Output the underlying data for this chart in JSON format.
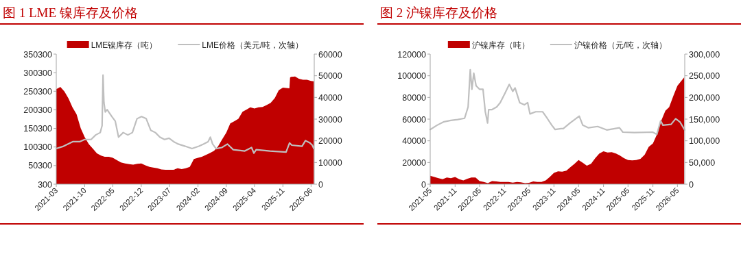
{
  "chart_data": [
    {
      "type": "area",
      "title": "图 1 LME 镍库存及价格",
      "legend": "top",
      "xlim": [
        "2021-03-01",
        "2026-06-25"
      ],
      "xticks": [
        {
          "value": "2021-03",
          "label": "2021-03"
        },
        {
          "value": "2021-10",
          "label": "2021-10"
        },
        {
          "value": "2022-05",
          "label": "2022-05"
        },
        {
          "value": "2022-12",
          "label": "2022-12"
        },
        {
          "value": "2023-07",
          "label": "2023-07"
        },
        {
          "value": "2024-02",
          "label": "2024-02"
        },
        {
          "value": "2024-09",
          "label": "2024-09"
        },
        {
          "value": "2025-04",
          "label": "2025-04"
        },
        {
          "value": "2025-11",
          "label": "2025-11"
        },
        {
          "value": "2026-06",
          "label": "2026-06"
        }
      ],
      "ylim": [
        300,
        350300
      ],
      "yticks": [
        300,
        50300,
        100300,
        150300,
        200300,
        250300,
        300300,
        350300
      ],
      "y2lim": [
        0,
        60000
      ],
      "y2ticks": [
        0,
        10000,
        20000,
        30000,
        40000,
        50000,
        60000
      ],
      "series": [
        {
          "name": "LME镍库存（吨）",
          "color": "#c00000",
          "x": [
            "2021-03-01",
            "2021-04-01",
            "2021-05-01",
            "2021-06-01",
            "2021-07-01",
            "2021-08-01",
            "2021-09-01",
            "2021-10-01",
            "2021-11-01",
            "2021-12-01",
            "2022-01-01",
            "2022-02-01",
            "2022-03-01",
            "2022-04-01",
            "2022-05-01",
            "2022-06-01",
            "2022-07-01",
            "2022-08-01",
            "2022-09-01",
            "2022-10-01",
            "2022-11-01",
            "2022-12-01",
            "2023-01-01",
            "2023-02-01",
            "2023-03-01",
            "2023-04-01",
            "2023-05-01",
            "2023-06-01",
            "2023-07-01",
            "2023-08-01",
            "2023-09-01",
            "2023-10-01",
            "2023-11-01",
            "2023-12-01",
            "2024-01-01",
            "2024-02-01",
            "2024-03-01",
            "2024-04-01",
            "2024-05-01",
            "2024-06-01",
            "2024-07-01",
            "2024-08-01",
            "2024-09-01",
            "2024-10-01",
            "2024-11-01",
            "2024-12-01",
            "2025-01-01",
            "2025-02-01",
            "2025-03-01",
            "2025-04-01",
            "2025-05-01",
            "2025-06-01",
            "2025-07-01",
            "2025-08-01",
            "2025-09-01",
            "2025-10-01",
            "2025-11-01",
            "2025-12-20",
            "2025-12-25",
            "2026-01-01",
            "2026-02-01",
            "2026-03-01",
            "2026-04-01",
            "2026-05-01",
            "2026-06-01",
            "2026-06-22"
          ],
          "values": [
            256000,
            262000,
            250000,
            231000,
            207000,
            188000,
            151000,
            127000,
            108000,
            96000,
            83000,
            77000,
            74000,
            74000,
            71000,
            65000,
            59000,
            56000,
            54000,
            53000,
            55000,
            56000,
            51000,
            47000,
            45000,
            43000,
            40000,
            39000,
            39000,
            39000,
            43000,
            41000,
            43000,
            47000,
            68000,
            71000,
            74000,
            79000,
            84000,
            90000,
            102000,
            121000,
            139000,
            164000,
            170000,
            176000,
            195000,
            201000,
            207000,
            204000,
            207000,
            208000,
            213000,
            219000,
            232000,
            253000,
            260000,
            258000,
            287000,
            289000,
            290000,
            284000,
            281000,
            281000,
            278000,
            277000
          ]
        },
        {
          "name": "LME价格（美元/吨，次轴）",
          "type": "line",
          "axis": "y2",
          "color": "#bfbfbf",
          "x": [
            "2021-03-01",
            "2021-04-25",
            "2021-07-03",
            "2021-08-24",
            "2021-10-01",
            "2021-11-18",
            "2021-12-23",
            "2022-01-26",
            "2022-02-09",
            "2022-02-16",
            "2022-02-23",
            "2022-03-05",
            "2022-03-19",
            "2022-04-23",
            "2022-05-19",
            "2022-06-13",
            "2022-07-18",
            "2022-08-22",
            "2022-09-25",
            "2022-10-30",
            "2022-12-03",
            "2023-01-07",
            "2023-02-10",
            "2023-03-17",
            "2023-04-20",
            "2023-05-25",
            "2023-06-28",
            "2023-08-02",
            "2023-09-05",
            "2023-10-27",
            "2023-12-18",
            "2024-02-08",
            "2024-03-13",
            "2024-04-17",
            "2024-05-04",
            "2024-05-21",
            "2024-06-16",
            "2024-07-29",
            "2024-09-10",
            "2024-10-23",
            "2025-01-18",
            "2025-03-10",
            "2025-03-28",
            "2025-04-14",
            "2025-07-27",
            "2025-11-25",
            "2025-12-21",
            "2026-01-07",
            "2026-03-25",
            "2026-04-20",
            "2026-05-24",
            "2026-06-10",
            "2026-06-22"
          ],
          "values": [
            16400,
            17500,
            19600,
            19600,
            20600,
            20600,
            22700,
            23800,
            27000,
            50300,
            37600,
            33300,
            34400,
            31200,
            29100,
            21700,
            23800,
            22700,
            23800,
            30200,
            31200,
            30200,
            24900,
            23800,
            21700,
            20600,
            21200,
            19600,
            18500,
            17500,
            16400,
            17500,
            18500,
            19600,
            21700,
            18500,
            16400,
            16900,
            18500,
            15900,
            15300,
            16900,
            14300,
            15900,
            15300,
            14800,
            19000,
            18000,
            17500,
            20100,
            19000,
            18000,
            16400
          ]
        }
      ]
    },
    {
      "type": "area",
      "title": "图 2 沪镍库存及价格",
      "legend": "top",
      "xlim": [
        "2021-05-01",
        "2026-06-24"
      ],
      "xticks": [
        {
          "value": "2021-05",
          "label": "2021-05"
        },
        {
          "value": "2021-11",
          "label": "2021-11"
        },
        {
          "value": "2022-05",
          "label": "2022-05"
        },
        {
          "value": "2022-11",
          "label": "2022-11"
        },
        {
          "value": "2023-05",
          "label": "2023-05"
        },
        {
          "value": "2023-11",
          "label": "2023-11"
        },
        {
          "value": "2024-05",
          "label": "2024-05"
        },
        {
          "value": "2024-11",
          "label": "2024-11"
        },
        {
          "value": "2025-05",
          "label": "2025-05"
        },
        {
          "value": "2025-11",
          "label": "2025-11"
        },
        {
          "value": "2026-05",
          "label": "2026-05"
        }
      ],
      "ylim": [
        0,
        120000
      ],
      "yticks": [
        0,
        20000,
        40000,
        60000,
        80000,
        100000,
        120000
      ],
      "y2lim": [
        0,
        300000
      ],
      "y2ticks": [
        0,
        {
          "value": 50000,
          "label": "50,000"
        },
        {
          "value": 100000,
          "label": "100,000"
        },
        {
          "value": 150000,
          "label": "150,000"
        },
        {
          "value": 200000,
          "label": "200,000"
        },
        {
          "value": 250000,
          "label": "250,000"
        },
        {
          "value": 300000,
          "label": "300,000"
        }
      ],
      "series": [
        {
          "name": "沪镍库存（吨）",
          "color": "#c00000",
          "x": [
            "2021-05-01",
            "2021-06-01",
            "2021-07-01",
            "2021-08-01",
            "2021-09-01",
            "2021-10-01",
            "2021-11-01",
            "2021-12-01",
            "2022-01-01",
            "2022-02-01",
            "2022-03-01",
            "2022-04-01",
            "2022-05-01",
            "2022-06-01",
            "2022-07-01",
            "2022-08-01",
            "2022-09-01",
            "2022-10-01",
            "2022-11-01",
            "2022-12-01",
            "2023-01-01",
            "2023-02-01",
            "2023-03-01",
            "2023-04-01",
            "2023-05-01",
            "2023-06-01",
            "2023-07-01",
            "2023-08-01",
            "2023-09-01",
            "2023-10-01",
            "2023-11-01",
            "2023-12-01",
            "2024-01-01",
            "2024-02-01",
            "2024-03-01",
            "2024-04-01",
            "2024-05-01",
            "2024-06-01",
            "2024-07-01",
            "2024-08-01",
            "2024-09-01",
            "2024-10-01",
            "2024-11-01",
            "2024-12-01",
            "2025-01-01",
            "2025-02-01",
            "2025-03-01",
            "2025-04-01",
            "2025-05-01",
            "2025-06-01",
            "2025-07-01",
            "2025-08-01",
            "2025-09-01",
            "2025-10-01",
            "2025-11-01",
            "2025-12-01",
            "2026-01-01",
            "2026-02-01",
            "2026-03-01",
            "2026-04-01",
            "2026-05-01",
            "2026-06-20"
          ],
          "values": [
            7700,
            6700,
            5600,
            4600,
            6200,
            5600,
            6700,
            4600,
            3500,
            5000,
            6200,
            6200,
            2900,
            2100,
            1000,
            2900,
            2500,
            2100,
            2100,
            2100,
            1500,
            2100,
            1700,
            1000,
            1200,
            2500,
            2100,
            2100,
            3500,
            6700,
            10400,
            11900,
            11500,
            12500,
            15600,
            18800,
            22300,
            19800,
            17100,
            18800,
            24000,
            28200,
            30300,
            29200,
            29600,
            28200,
            26500,
            24000,
            22300,
            21900,
            22300,
            23400,
            27100,
            34400,
            37600,
            45900,
            58400,
            67800,
            71000,
            81400,
            90800,
            98500
          ]
        },
        {
          "name": "沪镍价格（元/吨，次轴）",
          "type": "line",
          "axis": "y2",
          "color": "#bfbfbf",
          "x": [
            "2021-05-01",
            "2021-06-21",
            "2021-08-11",
            "2021-09-30",
            "2021-11-20",
            "2022-01-10",
            "2022-02-05",
            "2022-02-21",
            "2022-03-05",
            "2022-03-19",
            "2022-04-05",
            "2022-04-30",
            "2022-05-26",
            "2022-06-12",
            "2022-06-29",
            "2022-07-07",
            "2022-08-01",
            "2022-09-04",
            "2022-09-30",
            "2022-11-03",
            "2022-12-06",
            "2023-01-01",
            "2023-01-18",
            "2023-02-21",
            "2023-03-27",
            "2023-04-21",
            "2023-05-08",
            "2023-06-19",
            "2023-08-09",
            "2023-09-12",
            "2023-10-16",
            "2023-11-10",
            "2023-12-23",
            "2024-01-09",
            "2024-02-28",
            "2024-05-06",
            "2024-06-01",
            "2024-07-13",
            "2024-09-19",
            "2024-11-25",
            "2025-02-27",
            "2025-03-24",
            "2025-06-17",
            "2025-10-30",
            "2025-11-30",
            "2025-12-28",
            "2026-01-14",
            "2026-03-15",
            "2026-04-18",
            "2026-05-21",
            "2026-06-24"
          ],
          "values": [
            126000,
            136000,
            144000,
            147000,
            149000,
            152000,
            178000,
            264000,
            219000,
            256000,
            227000,
            219000,
            219000,
            167000,
            141000,
            172000,
            172000,
            178000,
            188000,
            209000,
            230000,
            214000,
            222000,
            188000,
            183000,
            188000,
            162000,
            167000,
            167000,
            152000,
            136000,
            126000,
            128000,
            128000,
            141000,
            157000,
            136000,
            130000,
            133000,
            125000,
            130000,
            120000,
            119000,
            120000,
            115000,
            146000,
            136000,
            138000,
            151000,
            143000,
            125000
          ]
        }
      ]
    }
  ]
}
